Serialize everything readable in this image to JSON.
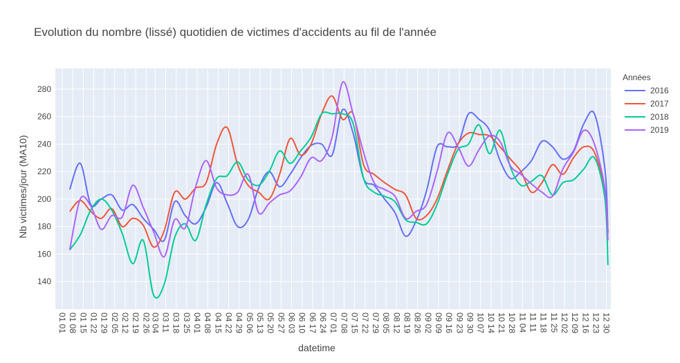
{
  "chart_data": {
    "type": "line",
    "title": "Evolution du nombre (lissé) quotidien de victimes d'accidents au fil de l'année",
    "xlabel": "datetime",
    "ylabel": "Nb victimes/jour (MA10)",
    "ylim": [
      120,
      295
    ],
    "yticks": [
      140,
      160,
      180,
      200,
      220,
      240,
      260,
      280
    ],
    "xtick_labels": [
      "01 01",
      "01 08",
      "01 15",
      "01 22",
      "01 29",
      "02 05",
      "02 12",
      "02 19",
      "02 26",
      "03 04",
      "03 11",
      "03 18",
      "03 25",
      "04 01",
      "04 08",
      "04 15",
      "04 22",
      "04 29",
      "05 06",
      "05 13",
      "05 20",
      "05 27",
      "06 03",
      "06 10",
      "06 17",
      "06 24",
      "07 01",
      "07 08",
      "07 15",
      "07 22",
      "07 29",
      "08 05",
      "08 12",
      "08 19",
      "08 26",
      "09 02",
      "09 09",
      "09 16",
      "09 23",
      "09 30",
      "10 07",
      "10 14",
      "10 21",
      "10 28",
      "11 04",
      "11 11",
      "11 18",
      "11 25",
      "12 02",
      "12 09",
      "12 16",
      "12 23",
      "12 30"
    ],
    "x": [
      "01 06",
      "01 13",
      "01 20",
      "01 27",
      "02 03",
      "02 10",
      "02 17",
      "02 24",
      "03 03",
      "03 10",
      "03 17",
      "03 24",
      "03 31",
      "04 07",
      "04 14",
      "04 21",
      "04 28",
      "05 05",
      "05 12",
      "05 19",
      "05 26",
      "06 02",
      "06 09",
      "06 16",
      "06 23",
      "06 30",
      "07 07",
      "07 14",
      "07 21",
      "07 28",
      "08 04",
      "08 11",
      "08 18",
      "08 25",
      "09 01",
      "09 08",
      "09 15",
      "09 22",
      "09 29",
      "10 06",
      "10 13",
      "10 20",
      "10 27",
      "11 03",
      "11 10",
      "11 17",
      "11 24",
      "12 01",
      "12 08",
      "12 15",
      "12 22",
      "12 29",
      "12 31"
    ],
    "legend_title": "Années",
    "legend_position": "right",
    "grid": true,
    "series": [
      {
        "name": "2016",
        "color": "#636efa",
        "values": [
          207,
          226,
          196,
          200,
          203,
          192,
          196,
          186,
          178,
          170,
          198,
          188,
          182,
          194,
          212,
          197,
          180,
          185,
          208,
          220,
          209,
          218,
          230,
          239,
          240,
          232,
          265,
          248,
          215,
          210,
          200,
          190,
          173,
          184,
          206,
          238,
          238,
          240,
          262,
          258,
          250,
          228,
          215,
          220,
          228,
          242,
          238,
          229,
          235,
          255,
          262,
          222,
          176
        ]
      },
      {
        "name": "2017",
        "color": "#ef553b",
        "values": [
          191,
          199,
          191,
          186,
          193,
          180,
          186,
          181,
          165,
          177,
          205,
          200,
          208,
          212,
          240,
          252,
          225,
          210,
          205,
          200,
          218,
          244,
          232,
          240,
          262,
          275,
          258,
          262,
          225,
          218,
          212,
          207,
          203,
          186,
          188,
          200,
          221,
          240,
          248,
          247,
          246,
          238,
          229,
          220,
          205,
          212,
          225,
          218,
          230,
          238,
          234,
          206,
          175
        ]
      },
      {
        "name": "2018",
        "color": "#00cc96",
        "values": [
          163,
          174,
          192,
          200,
          192,
          175,
          153,
          170,
          130,
          138,
          172,
          182,
          170,
          196,
          215,
          217,
          227,
          214,
          210,
          220,
          235,
          226,
          235,
          245,
          262,
          262,
          262,
          255,
          215,
          205,
          202,
          198,
          185,
          183,
          182,
          196,
          218,
          236,
          240,
          254,
          233,
          250,
          223,
          210,
          213,
          217,
          203,
          212,
          214,
          222,
          230,
          200,
          152
        ]
      },
      {
        "name": "2019",
        "color": "#ab63fa",
        "values": [
          163,
          200,
          195,
          178,
          188,
          187,
          210,
          194,
          176,
          158,
          185,
          179,
          209,
          228,
          208,
          203,
          205,
          218,
          190,
          197,
          203,
          206,
          216,
          230,
          228,
          245,
          285,
          262,
          234,
          212,
          207,
          202,
          186,
          191,
          196,
          220,
          248,
          238,
          224,
          236,
          246,
          242,
          224,
          218,
          211,
          205,
          202,
          222,
          234,
          250,
          240,
          207,
          170
        ]
      }
    ]
  }
}
